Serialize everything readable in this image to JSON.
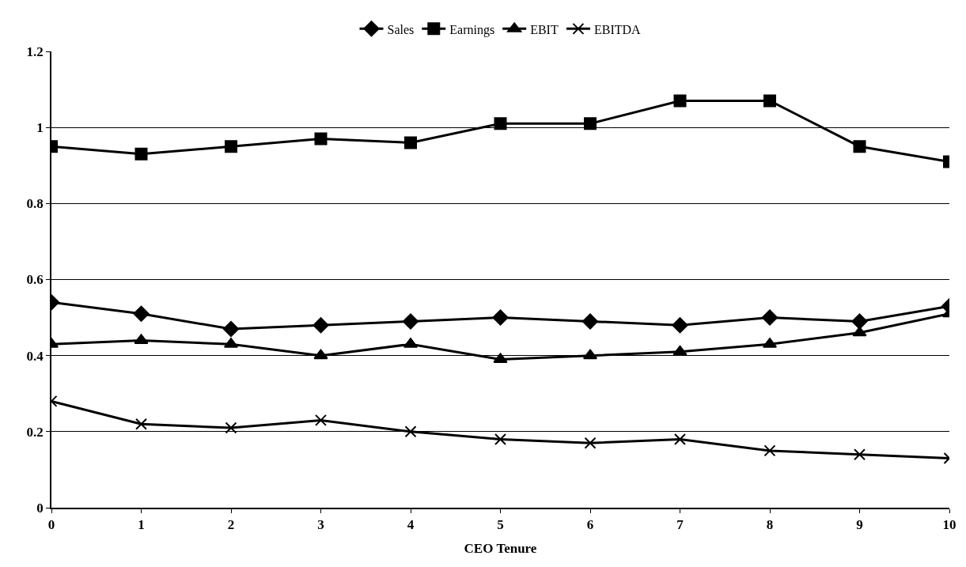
{
  "chart_data": {
    "type": "line",
    "xlabel": "CEO Tenure",
    "x": [
      0,
      1,
      2,
      3,
      4,
      5,
      6,
      7,
      8,
      9,
      10
    ],
    "series": [
      {
        "name": "Sales",
        "color": "#000000",
        "marker": "diamond",
        "values": [
          0.54,
          0.51,
          0.47,
          0.48,
          0.49,
          0.5,
          0.49,
          0.48,
          0.5,
          0.49,
          0.53
        ]
      },
      {
        "name": "Earnings",
        "color": "#000000",
        "marker": "square",
        "values": [
          0.95,
          0.93,
          0.95,
          0.97,
          0.96,
          1.01,
          1.01,
          1.07,
          1.07,
          0.95,
          0.91
        ]
      },
      {
        "name": "EBIT",
        "color": "#000000",
        "marker": "triangle",
        "values": [
          0.43,
          0.44,
          0.43,
          0.4,
          0.43,
          0.39,
          0.4,
          0.41,
          0.43,
          0.46,
          0.51
        ]
      },
      {
        "name": "EBITDA",
        "color": "#000000",
        "marker": "cross",
        "values": [
          0.28,
          0.22,
          0.21,
          0.23,
          0.2,
          0.18,
          0.17,
          0.18,
          0.15,
          0.14,
          0.13
        ]
      }
    ],
    "xlim": [
      0,
      10
    ],
    "xticks": [
      0,
      1,
      2,
      3,
      4,
      5,
      6,
      7,
      8,
      9,
      10
    ],
    "ylim": [
      0,
      1.2
    ],
    "yticks": [
      0,
      0.2,
      0.4,
      0.6,
      0.8,
      1,
      1.2
    ],
    "grid": "y",
    "legend": "top",
    "line_style": "solid"
  }
}
